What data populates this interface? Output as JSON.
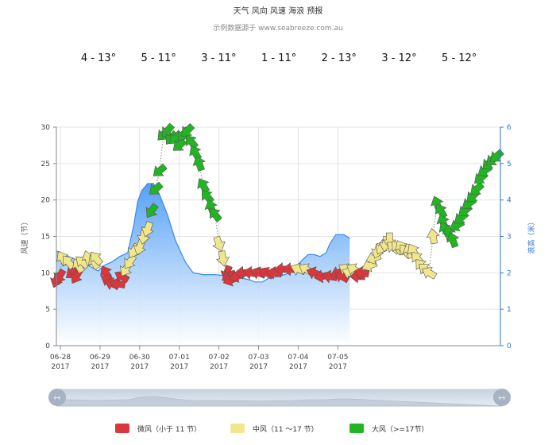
{
  "chart_data": {
    "type": "area",
    "title": "天气 风向 风速 海浪 预报",
    "subtitle": "示例数据源于 www.seabreeze.com.au",
    "temperatures": [
      "4 - 13°",
      "5 - 11°",
      "3 - 11°",
      "1 - 11°",
      "2 - 13°",
      "3 - 12°",
      "5 - 12°"
    ],
    "yaxis_left": {
      "label": "风速（节）",
      "min": 0,
      "max": 30,
      "ticks": [
        0,
        5,
        10,
        15,
        20,
        25,
        30
      ]
    },
    "yaxis_right": {
      "label": "浪高（米）",
      "min": 0,
      "max": 6,
      "ticks": [
        0,
        1,
        2,
        3,
        4,
        5,
        6
      ]
    },
    "x_ticks": [
      {
        "t": 0.1,
        "line1": "06-28",
        "line2": "2017"
      },
      {
        "t": 1.1,
        "line1": "06-29",
        "line2": "2017"
      },
      {
        "t": 2.1,
        "line1": "06-30",
        "line2": "2017"
      },
      {
        "t": 3.1,
        "line1": "07-01",
        "line2": "2017"
      },
      {
        "t": 4.1,
        "line1": "07-02",
        "line2": "2017"
      },
      {
        "t": 5.1,
        "line1": "07-03",
        "line2": "2017"
      },
      {
        "t": 6.1,
        "line1": "07-04",
        "line2": "2017"
      },
      {
        "t": 7.1,
        "line1": "07-05",
        "line2": "2017"
      }
    ],
    "wave_height": [
      [
        0.0,
        2.6
      ],
      [
        0.3,
        2.45
      ],
      [
        0.6,
        2.3
      ],
      [
        0.9,
        2.15
      ],
      [
        1.05,
        2.05
      ],
      [
        1.2,
        2.2
      ],
      [
        1.4,
        2.3
      ],
      [
        1.6,
        2.45
      ],
      [
        1.8,
        2.55
      ],
      [
        1.95,
        3.3
      ],
      [
        2.05,
        3.95
      ],
      [
        2.15,
        4.25
      ],
      [
        2.3,
        4.45
      ],
      [
        2.45,
        4.45
      ],
      [
        2.6,
        4.15
      ],
      [
        2.8,
        3.6
      ],
      [
        3.0,
        2.9
      ],
      [
        3.25,
        2.3
      ],
      [
        3.45,
        2.0
      ],
      [
        3.7,
        1.95
      ],
      [
        4.0,
        1.95
      ],
      [
        4.5,
        1.9
      ],
      [
        4.9,
        1.8
      ],
      [
        5.0,
        1.75
      ],
      [
        5.2,
        1.75
      ],
      [
        5.35,
        1.85
      ],
      [
        5.6,
        1.9
      ],
      [
        5.9,
        2.0
      ],
      [
        6.2,
        2.35
      ],
      [
        6.35,
        2.5
      ],
      [
        6.5,
        2.5
      ],
      [
        6.65,
        2.45
      ],
      [
        6.8,
        2.55
      ],
      [
        6.9,
        2.8
      ],
      [
        7.05,
        3.05
      ],
      [
        7.25,
        3.05
      ],
      [
        7.4,
        2.95
      ]
    ],
    "wind": [
      [
        0.0,
        9,
        200,
        "light"
      ],
      [
        0.08,
        9.5,
        210,
        "light"
      ],
      [
        0.15,
        12,
        330,
        "medium"
      ],
      [
        0.3,
        11.5,
        320,
        "medium"
      ],
      [
        0.4,
        10,
        230,
        "light"
      ],
      [
        0.5,
        9.5,
        210,
        "light"
      ],
      [
        0.55,
        11,
        330,
        "medium"
      ],
      [
        0.65,
        11.5,
        310,
        "medium"
      ],
      [
        0.8,
        12,
        340,
        "medium"
      ],
      [
        0.95,
        11.5,
        330,
        "medium"
      ],
      [
        1.0,
        12,
        320,
        "medium"
      ],
      [
        1.25,
        10,
        330,
        "light"
      ],
      [
        1.3,
        9,
        300,
        "light"
      ],
      [
        1.4,
        8.5,
        290,
        "light"
      ],
      [
        1.55,
        8.5,
        280,
        "light"
      ],
      [
        1.65,
        9.5,
        300,
        "light"
      ],
      [
        1.75,
        10.5,
        210,
        "medium"
      ],
      [
        1.85,
        11.5,
        215,
        "medium"
      ],
      [
        1.95,
        13,
        210,
        "medium"
      ],
      [
        2.1,
        13.5,
        200,
        "medium"
      ],
      [
        2.2,
        15,
        190,
        "medium"
      ],
      [
        2.3,
        16,
        200,
        "medium"
      ],
      [
        2.4,
        18.5,
        215,
        "strong"
      ],
      [
        2.5,
        21.5,
        230,
        "strong"
      ],
      [
        2.6,
        24,
        230,
        "strong"
      ],
      [
        2.7,
        29,
        225,
        "strong"
      ],
      [
        2.8,
        29.5,
        220,
        "strong"
      ],
      [
        2.9,
        28.5,
        220,
        "strong"
      ],
      [
        3.0,
        28.5,
        225,
        "strong"
      ],
      [
        3.1,
        27.5,
        230,
        "strong"
      ],
      [
        3.2,
        29,
        220,
        "strong"
      ],
      [
        3.3,
        29.5,
        225,
        "strong"
      ],
      [
        3.4,
        28,
        320,
        "strong"
      ],
      [
        3.5,
        26.5,
        330,
        "strong"
      ],
      [
        3.6,
        25,
        340,
        "strong"
      ],
      [
        3.7,
        22,
        330,
        "strong"
      ],
      [
        3.8,
        20.5,
        320,
        "strong"
      ],
      [
        3.9,
        19,
        340,
        "strong"
      ],
      [
        4.0,
        18,
        320,
        "strong"
      ],
      [
        4.1,
        14,
        160,
        "medium"
      ],
      [
        4.2,
        12,
        170,
        "medium"
      ],
      [
        4.3,
        10,
        200,
        "light"
      ],
      [
        4.35,
        9.5,
        240,
        "light"
      ],
      [
        4.4,
        9,
        250,
        "light"
      ],
      [
        4.55,
        9.5,
        250,
        "light"
      ],
      [
        4.7,
        10,
        270,
        "light"
      ],
      [
        4.9,
        10,
        280,
        "light"
      ],
      [
        5.1,
        10,
        290,
        "light"
      ],
      [
        5.3,
        10,
        300,
        "light"
      ],
      [
        5.5,
        10,
        280,
        "light"
      ],
      [
        5.7,
        10.5,
        270,
        "light"
      ],
      [
        5.9,
        10.5,
        270,
        "light"
      ],
      [
        6.1,
        10.5,
        290,
        "medium"
      ],
      [
        6.3,
        10.5,
        300,
        "medium"
      ],
      [
        6.5,
        10,
        290,
        "light"
      ],
      [
        6.7,
        9.5,
        260,
        "light"
      ],
      [
        6.9,
        9.5,
        280,
        "light"
      ],
      [
        7.1,
        10,
        250,
        "light"
      ],
      [
        7.2,
        9.5,
        300,
        "light"
      ],
      [
        7.3,
        10.5,
        300,
        "medium"
      ],
      [
        7.4,
        10,
        290,
        "medium"
      ],
      [
        7.5,
        10.5,
        300,
        "medium"
      ],
      [
        7.6,
        9.5,
        270,
        "light"
      ],
      [
        7.7,
        10,
        280,
        "light"
      ],
      [
        7.9,
        11,
        250,
        "medium"
      ],
      [
        8.0,
        12,
        250,
        "medium"
      ],
      [
        8.1,
        13,
        200,
        "medium"
      ],
      [
        8.2,
        13.5,
        210,
        "medium"
      ],
      [
        8.3,
        14,
        190,
        "medium"
      ],
      [
        8.4,
        14.5,
        180,
        "medium"
      ],
      [
        8.5,
        13.5,
        310,
        "medium"
      ],
      [
        8.6,
        13.5,
        320,
        "medium"
      ],
      [
        8.7,
        13.5,
        330,
        "medium"
      ],
      [
        8.8,
        13,
        320,
        "medium"
      ],
      [
        8.9,
        13,
        340,
        "medium"
      ],
      [
        9.0,
        13,
        330,
        "medium"
      ],
      [
        9.1,
        12,
        320,
        "medium"
      ],
      [
        9.2,
        11,
        320,
        "medium"
      ],
      [
        9.3,
        10.5,
        310,
        "medium"
      ],
      [
        9.4,
        10,
        300,
        "medium"
      ],
      [
        9.5,
        15,
        350,
        "medium"
      ],
      [
        9.6,
        19.5,
        340,
        "strong"
      ],
      [
        9.7,
        18.5,
        330,
        "strong"
      ],
      [
        9.75,
        17,
        340,
        "strong"
      ],
      [
        9.8,
        16,
        330,
        "strong"
      ],
      [
        9.9,
        15.5,
        350,
        "strong"
      ],
      [
        10.0,
        14.5,
        340,
        "strong"
      ],
      [
        10.1,
        16.5,
        240,
        "strong"
      ],
      [
        10.2,
        17.5,
        230,
        "strong"
      ],
      [
        10.3,
        18.5,
        230,
        "strong"
      ],
      [
        10.4,
        19.5,
        235,
        "strong"
      ],
      [
        10.5,
        20.5,
        225,
        "strong"
      ],
      [
        10.6,
        21.5,
        230,
        "strong"
      ],
      [
        10.7,
        23,
        230,
        "strong"
      ],
      [
        10.8,
        24,
        235,
        "strong"
      ],
      [
        10.9,
        25,
        225,
        "strong"
      ],
      [
        11.0,
        25.5,
        230,
        "strong"
      ],
      [
        11.1,
        26,
        230,
        "strong"
      ]
    ],
    "legend": [
      {
        "label": "微风（小于 11 节）",
        "color": "#d9373b"
      },
      {
        "label": "中风（11 ～17 节）",
        "color": "#f0e68c"
      },
      {
        "label": "大风（>=17节）",
        "color": "#22b522"
      }
    ]
  }
}
